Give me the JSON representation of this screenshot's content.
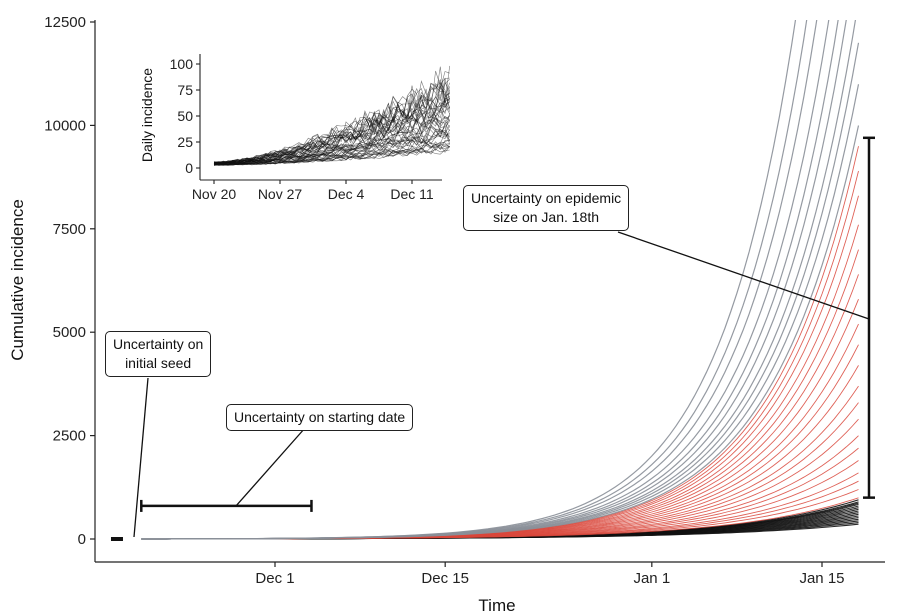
{
  "chart_data": [
    {
      "type": "line",
      "title": "",
      "xlabel": "Time",
      "ylabel": "Cumulative incidence",
      "x_start": "Nov 20",
      "x_end": "Jan 18",
      "ylim": [
        0,
        12500
      ],
      "x_ticks": [
        "Dec 1",
        "Dec 15",
        "Jan 1",
        "Jan 15"
      ],
      "y_ticks": [
        "0",
        "2500",
        "5000",
        "7500",
        "10000",
        "12500"
      ],
      "grid": false,
      "series": [
        {
          "values_jan18": [
            950,
            900,
            870,
            840,
            800,
            760,
            720,
            680,
            640,
            600,
            560,
            520,
            480,
            440,
            400,
            360
          ]
        },
        {
          "values_jan18": [
            9500,
            8900,
            8300,
            7600,
            7000,
            6400,
            5800,
            5200,
            4700,
            4200,
            3700,
            3300,
            2900,
            2500,
            2200,
            1900,
            1600,
            1400,
            1200,
            1000
          ]
        },
        {
          "values_jan18": [
            10000,
            11000,
            12000,
            13000,
            14500,
            16000,
            18000,
            21000,
            24000,
            28000
          ]
        }
      ],
      "colors": {
        "low": "#111111",
        "mid": "#d9463b",
        "high": "#8a8f98"
      },
      "annotations": [
        {
          "text": "Uncertainty on initial seed"
        },
        {
          "text": "Uncertainty on starting date"
        },
        {
          "text": "Uncertainty on epidemic size on Jan. 18th"
        }
      ],
      "uncertainty_bars": {
        "initial_seed": {
          "date": "Nov 18",
          "value": 0
        },
        "starting_date": {
          "from": "Nov 20",
          "to": "Dec 4",
          "value": 800
        },
        "epidemic_size": {
          "date": "Jan 18",
          "from": 1000,
          "to": 9700
        }
      }
    },
    {
      "type": "line",
      "title": "",
      "xlabel": "",
      "ylabel": "Daily incidence",
      "x_ticks": [
        "Nov 20",
        "Nov 27",
        "Dec 4",
        "Dec 11"
      ],
      "y_ticks": [
        "0",
        "25",
        "50",
        "75",
        "100"
      ],
      "ylim": [
        0,
        100
      ],
      "grid": false,
      "series": [
        {
          "start": 5,
          "end": 100
        },
        {
          "start": 5,
          "end": 80
        },
        {
          "start": 4,
          "end": 60
        },
        {
          "start": 4,
          "end": 40
        },
        {
          "start": 3,
          "end": 25
        }
      ]
    }
  ],
  "labels": {
    "seed": "Uncertainty on\ninitial seed",
    "start": "Uncertainty on starting date",
    "size": "Uncertainty on epidemic\nsize on Jan. 18th"
  }
}
